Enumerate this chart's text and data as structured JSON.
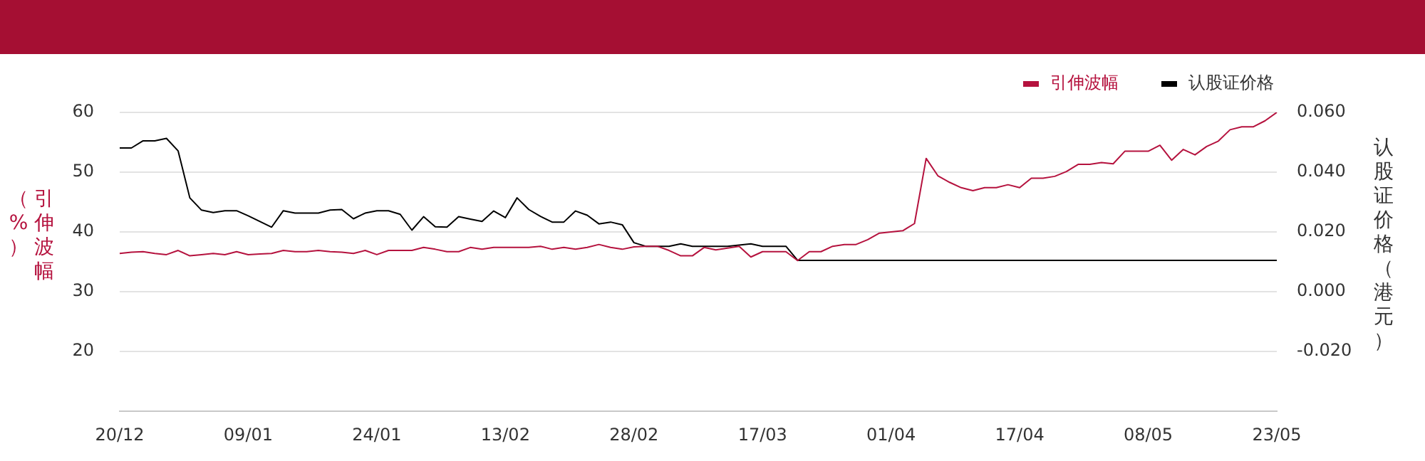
{
  "chart_data": {
    "type": "line",
    "ylabel": "引伸波幅（%）",
    "y2label": "认股证价格（港元）",
    "categories": [
      "20/12",
      null,
      null,
      null,
      null,
      null,
      null,
      null,
      null,
      null,
      null,
      "09/01",
      null,
      null,
      null,
      null,
      null,
      null,
      null,
      null,
      null,
      null,
      "24/01",
      null,
      null,
      null,
      null,
      null,
      null,
      null,
      null,
      null,
      null,
      "13/02",
      null,
      null,
      null,
      null,
      null,
      null,
      null,
      null,
      null,
      null,
      "28/02",
      null,
      null,
      null,
      null,
      null,
      null,
      null,
      null,
      null,
      null,
      "17/03",
      null,
      null,
      null,
      null,
      null,
      null,
      null,
      null,
      null,
      null,
      "01/04",
      null,
      null,
      null,
      null,
      null,
      null,
      null,
      null,
      null,
      null,
      "17/04",
      null,
      null,
      null,
      null,
      null,
      null,
      null,
      null,
      null,
      null,
      "08/05",
      null,
      null,
      null,
      null,
      null,
      null,
      null,
      null,
      null,
      null,
      "23/05"
    ],
    "series": [
      {
        "name": "引伸波幅",
        "color": "#b5123e",
        "values": [
          36.4,
          36.6,
          36.7,
          36.4,
          36.2,
          36.9,
          36.0,
          36.2,
          36.4,
          36.2,
          36.7,
          36.2,
          36.3,
          36.4,
          36.9,
          36.7,
          36.7,
          36.9,
          36.7,
          36.6,
          36.4,
          36.9,
          36.2,
          36.9,
          36.9,
          36.9,
          37.4,
          37.1,
          36.7,
          36.7,
          37.4,
          37.1,
          37.4,
          37.4,
          37.4,
          37.4,
          37.6,
          37.1,
          37.4,
          37.1,
          37.4,
          37.9,
          37.4,
          37.1,
          37.5,
          37.6,
          37.6,
          36.9,
          36.0,
          36.0,
          37.4,
          37.0,
          37.3,
          37.6,
          35.8,
          36.7,
          36.7,
          36.7,
          35.2,
          36.7,
          36.7,
          37.6,
          37.9,
          37.9,
          38.7,
          39.8,
          40.0,
          40.2,
          41.4,
          52.3,
          49.4,
          48.3,
          47.4,
          46.9,
          47.4,
          47.4,
          47.9,
          47.4,
          49.0,
          49.0,
          49.3,
          50.1,
          51.3,
          51.3,
          51.6,
          51.4,
          53.5,
          53.5,
          53.5,
          54.5,
          52.0,
          53.8,
          52.9,
          54.3,
          55.2,
          57.1,
          57.6,
          57.6,
          58.6,
          60.0
        ]
      },
      {
        "name": "认股证价格",
        "color": "#000000",
        "axis": "y2",
        "values": [
          0.0481,
          0.0481,
          0.0505,
          0.0505,
          0.0513,
          0.0471,
          0.0314,
          0.0273,
          0.0265,
          0.0271,
          0.0271,
          0.0254,
          0.0235,
          0.0216,
          0.0271,
          0.0263,
          0.0263,
          0.0263,
          0.0273,
          0.0275,
          0.0244,
          0.0263,
          0.0271,
          0.0271,
          0.0259,
          0.0206,
          0.0251,
          0.0217,
          0.0216,
          0.0251,
          0.0243,
          0.0235,
          0.027,
          0.0248,
          0.0314,
          0.0275,
          0.0252,
          0.0233,
          0.0233,
          0.027,
          0.0256,
          0.0227,
          0.0233,
          0.0224,
          0.0164,
          0.0152,
          0.0152,
          0.0152,
          0.016,
          0.0152,
          0.0152,
          0.0152,
          0.0152,
          0.0156,
          0.016,
          0.0152,
          0.0152,
          0.0152,
          0.0105,
          0.0105,
          0.0105,
          0.0105,
          0.0105,
          0.0105,
          0.0105,
          0.0105,
          0.0105,
          0.0105,
          0.0105,
          0.0105,
          0.0105,
          0.0105,
          0.0105,
          0.0105,
          0.0105,
          0.0105,
          0.0105,
          0.0105,
          0.0105,
          0.0105,
          0.0105,
          0.0105,
          0.0105,
          0.0105,
          0.0105,
          0.0105,
          0.0105,
          0.0105,
          0.0105,
          0.0105,
          0.0105,
          0.0105,
          0.0105,
          0.0105,
          0.0105,
          0.0105,
          0.0105,
          0.0105,
          0.0105,
          0.0105
        ]
      }
    ],
    "ylim": [
      10,
      60
    ],
    "yticks": [
      20,
      30,
      40,
      50,
      60
    ],
    "y2lim": [
      -0.04,
      0.06
    ],
    "y2ticks": [
      {
        "value": -0.02,
        "label": "-0.020"
      },
      {
        "value": 0,
        "label": "0.000"
      },
      {
        "value": 0.02,
        "label": "0.020"
      },
      {
        "value": 0.04,
        "label": "0.040"
      },
      {
        "value": 0.06,
        "label": "0.060"
      }
    ],
    "grid": "y",
    "legend": "top right",
    "marker": "none",
    "line_style": "solid"
  }
}
